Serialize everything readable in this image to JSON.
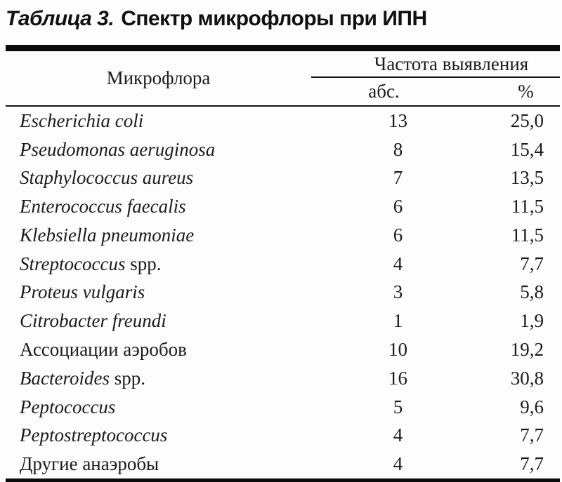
{
  "title": {
    "prefix_italic": "Таблица 3.",
    "text": "Спектр микрофлоры при ИПН"
  },
  "colors": {
    "text": "#1b1b1b",
    "rule_heavy": "#0a0a0a",
    "rule_thin": "#151515",
    "background": "#fdfdfd"
  },
  "table": {
    "columns": {
      "microflora": "Микрофлора",
      "frequency_group": "Частота выявления",
      "abs": "абс.",
      "percent": "%"
    },
    "rows": [
      {
        "name_italic": "Escherichia coli",
        "name_roman": "",
        "abs": "13",
        "percent": "25,0"
      },
      {
        "name_italic": "Pseudomonas aeruginosa",
        "name_roman": "",
        "abs": "8",
        "percent": "15,4"
      },
      {
        "name_italic": "Staphylococcus aureus",
        "name_roman": "",
        "abs": "7",
        "percent": "13,5"
      },
      {
        "name_italic": "Enterococcus faecalis",
        "name_roman": "",
        "abs": "6",
        "percent": "11,5"
      },
      {
        "name_italic": "Klebsiella pneumoniae",
        "name_roman": "",
        "abs": "6",
        "percent": "11,5"
      },
      {
        "name_italic": "Streptococcus",
        "name_roman": " spp.",
        "abs": "4",
        "percent": "7,7"
      },
      {
        "name_italic": "Proteus vulgaris",
        "name_roman": "",
        "abs": "3",
        "percent": "5,8"
      },
      {
        "name_italic": "Citrobacter freundi",
        "name_roman": "",
        "abs": "1",
        "percent": "1,9"
      },
      {
        "name_italic": "",
        "name_roman": "Ассоциации аэробов",
        "abs": "10",
        "percent": "19,2"
      },
      {
        "name_italic": "Bacteroides",
        "name_roman": " spp.",
        "abs": "16",
        "percent": "30,8"
      },
      {
        "name_italic": "Peptococcus",
        "name_roman": "",
        "abs": "5",
        "percent": "9,6"
      },
      {
        "name_italic": "Peptostreptococcus",
        "name_roman": "",
        "abs": "4",
        "percent": "7,7"
      },
      {
        "name_italic": "",
        "name_roman": "Другие анаэробы",
        "abs": "4",
        "percent": "7,7"
      }
    ]
  }
}
